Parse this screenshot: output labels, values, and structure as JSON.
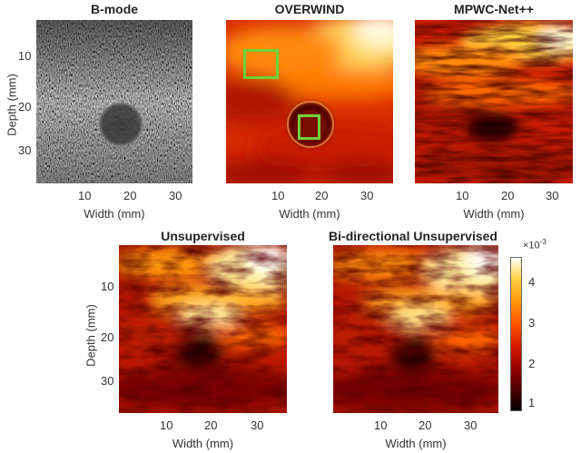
{
  "panels": [
    {
      "title": "B-mode",
      "kind": "bmode",
      "show_yaxis": true,
      "yticks": [
        "10",
        "20",
        "30"
      ],
      "xticks": [
        "10",
        "20",
        "30"
      ],
      "xlabel": "Width (mm)",
      "ylabel": "Depth (mm)"
    },
    {
      "title": "OVERWIND",
      "kind": "overwind",
      "show_yaxis": false,
      "xticks": [
        "10",
        "20",
        "30"
      ],
      "xlabel": "Width (mm)"
    },
    {
      "title": "MPWC-Net++",
      "kind": "mpwc",
      "show_yaxis": false,
      "xticks": [
        "10",
        "20",
        "30"
      ],
      "xlabel": "Width (mm)"
    },
    {
      "title": "Unsupervised",
      "kind": "unsup",
      "show_yaxis": true,
      "yticks": [
        "10",
        "20",
        "30"
      ],
      "xticks": [
        "10",
        "20",
        "30"
      ],
      "xlabel": "Width (mm)",
      "ylabel": "Depth (mm)"
    },
    {
      "title": "Bi-directional Unsupervised",
      "kind": "bidir",
      "show_yaxis": false,
      "xticks": [
        "10",
        "20",
        "30"
      ],
      "xlabel": "Width (mm)"
    }
  ],
  "colorbar": {
    "exponent_base": "×10",
    "exponent_power": "-3",
    "ticks": [
      "4",
      "3",
      "2",
      "1"
    ],
    "range": [
      0.8,
      4.6
    ],
    "colormap": "hot"
  },
  "colors": {
    "roi_box": "#6cd33a"
  }
}
